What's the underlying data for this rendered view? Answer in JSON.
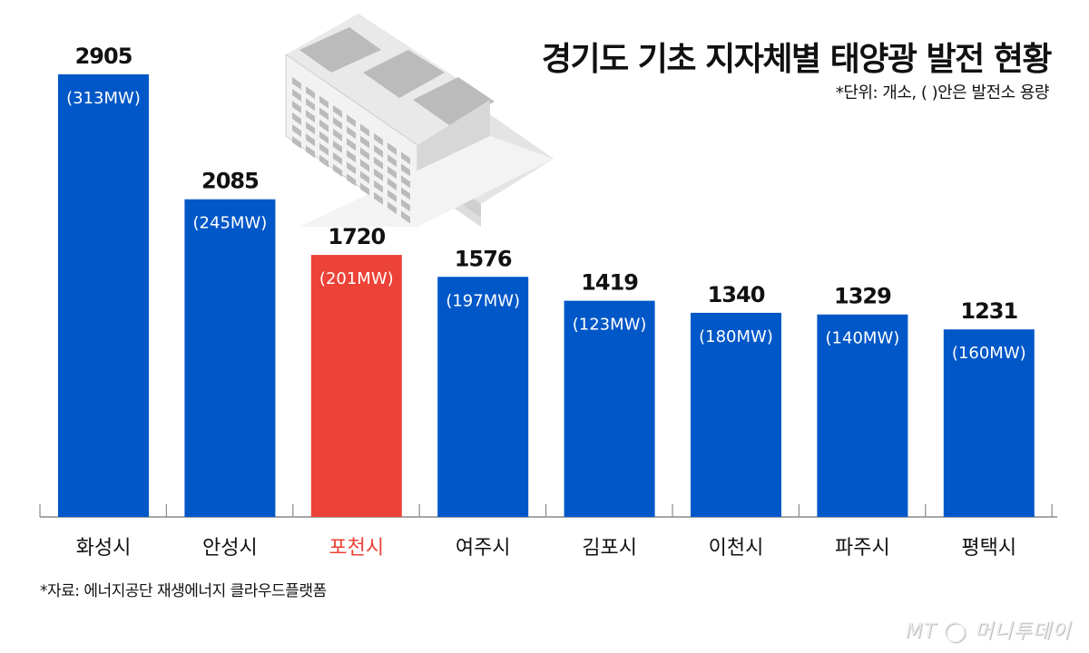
{
  "chart_data": {
    "type": "bar",
    "title": "경기도 기초 지자체별 태양광 발전 현황",
    "subtitle": "*단위: 개소, ( )안은 발전소 용량",
    "categories": [
      "화성시",
      "안성시",
      "포천시",
      "여주시",
      "김포시",
      "이천시",
      "파주시",
      "평택시"
    ],
    "values": [
      2905,
      2085,
      1720,
      1576,
      1419,
      1340,
      1329,
      1231
    ],
    "capacity_labels": [
      "(313MW)",
      "(245MW)",
      "(201MW)",
      "(197MW)",
      "(123MW)",
      "(180MW)",
      "(140MW)",
      "(160MW)"
    ],
    "highlight": "포천시",
    "colors": {
      "bar": "#0057c8",
      "highlight": "#ec4237",
      "axis": "#888888"
    },
    "ylim": [
      0,
      2905
    ],
    "grid": false
  },
  "source": "*자료: 에너지공단 재생에너지 클라우드플랫폼",
  "logo": "MT 머니투데이"
}
